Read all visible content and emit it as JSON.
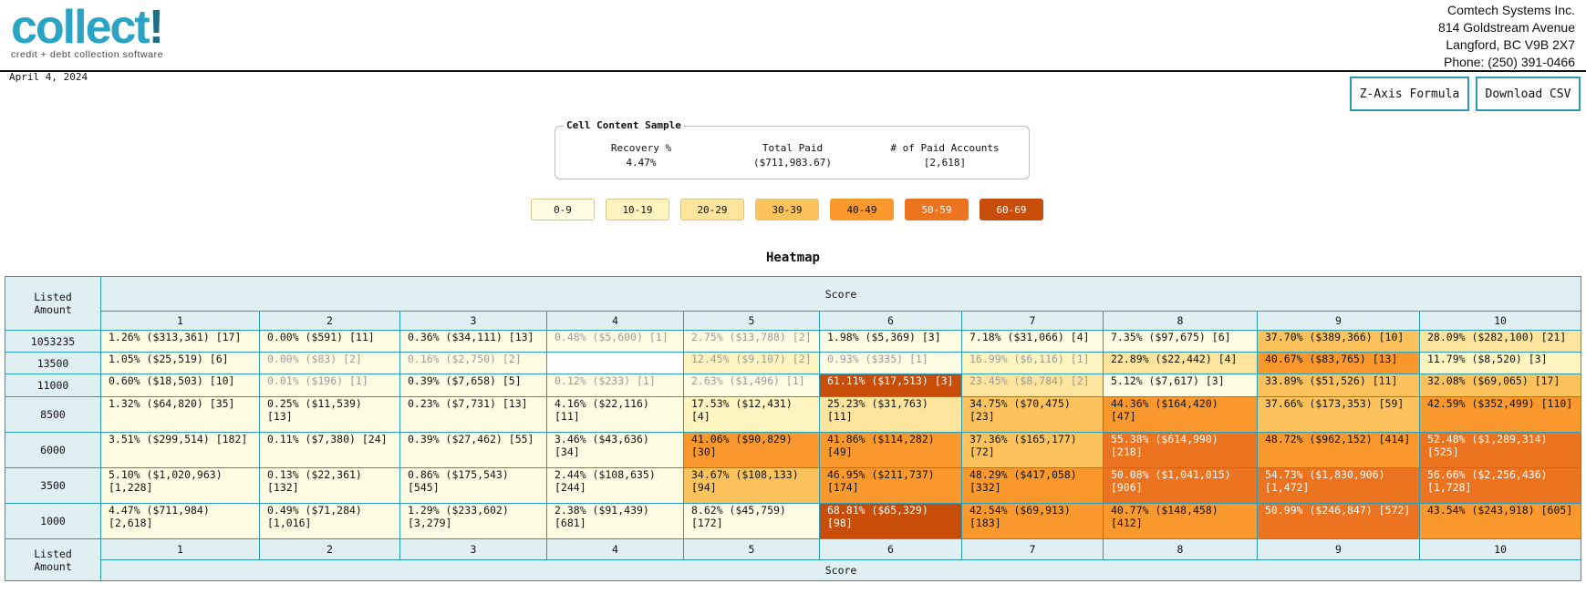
{
  "header": {
    "logo_word": "collect",
    "logo_bang": "!",
    "logo_tagline": "credit + debt collection software",
    "company": [
      "Comtech Systems Inc.",
      "814 Goldstream Avenue",
      "Langford, BC V9B 2X7",
      "Phone: (250) 391-0466"
    ]
  },
  "date": "April 4, 2024",
  "buttons": {
    "z_axis": "Z-Axis Formula",
    "download_csv": "Download CSV"
  },
  "sample": {
    "legend": "Cell Content Sample",
    "columns": [
      {
        "label": "Recovery %",
        "value": "4.47%"
      },
      {
        "label": "Total Paid",
        "value": "($711,983.67)"
      },
      {
        "label": "# of Paid Accounts",
        "value": "[2,618]"
      }
    ]
  },
  "legend": [
    {
      "label": "0-9",
      "color": "#fefde4",
      "text": "#111111"
    },
    {
      "label": "10-19",
      "color": "#fef4c0",
      "text": "#111111"
    },
    {
      "label": "20-29",
      "color": "#fde49c",
      "text": "#111111"
    },
    {
      "label": "30-39",
      "color": "#fcc35d",
      "text": "#111111"
    },
    {
      "label": "40-49",
      "color": "#f9982d",
      "text": "#111111"
    },
    {
      "label": "50-59",
      "color": "#ec7320",
      "text": "#ffffff"
    },
    {
      "label": "60-69",
      "color": "#c84d09",
      "text": "#ffffff"
    }
  ],
  "heatmap": {
    "title": "Heatmap",
    "corner_label": "Listed Amount",
    "x_axis_label": "Score",
    "scores": [
      "1",
      "2",
      "3",
      "4",
      "5",
      "6",
      "7",
      "8",
      "9",
      "10"
    ],
    "rows": [
      {
        "amount": "1053235",
        "cells": [
          {
            "t": "1.26% ($313,361) [17]",
            "v": 1.26,
            "f": false
          },
          {
            "t": "0.00% ($591) [11]",
            "v": 0.0,
            "f": false
          },
          {
            "t": "0.36% ($34,111) [13]",
            "v": 0.36,
            "f": false
          },
          {
            "t": "0.48% ($5,600) [1]",
            "v": 0.48,
            "f": true
          },
          {
            "t": "2.75% ($13,788) [2]",
            "v": 2.75,
            "f": true
          },
          {
            "t": "1.98% ($5,369) [3]",
            "v": 1.98,
            "f": false
          },
          {
            "t": "7.18% ($31,066) [4]",
            "v": 7.18,
            "f": false
          },
          {
            "t": "7.35% ($97,675) [6]",
            "v": 7.35,
            "f": false
          },
          {
            "t": "37.70% ($389,366) [10]",
            "v": 37.7,
            "f": false
          },
          {
            "t": "28.09% ($282,100) [21]",
            "v": 28.09,
            "f": false
          }
        ]
      },
      {
        "amount": "13500",
        "cells": [
          {
            "t": "1.05% ($25,519) [6]",
            "v": 1.05,
            "f": false
          },
          {
            "t": "0.00% ($83) [2]",
            "v": 0.0,
            "f": true
          },
          {
            "t": "0.16% ($2,750) [2]",
            "v": 0.16,
            "f": true
          },
          {
            "t": "",
            "v": null,
            "f": false
          },
          {
            "t": "12.45% ($9,107) [2]",
            "v": 12.45,
            "f": true
          },
          {
            "t": "0.93% ($335) [1]",
            "v": 0.93,
            "f": true
          },
          {
            "t": "16.99% ($6,116) [1]",
            "v": 16.99,
            "f": true
          },
          {
            "t": "22.89% ($22,442) [4]",
            "v": 22.89,
            "f": false
          },
          {
            "t": "40.67% ($83,765) [13]",
            "v": 40.67,
            "f": false
          },
          {
            "t": "11.79% ($8,520) [3]",
            "v": 11.79,
            "f": false
          }
        ]
      },
      {
        "amount": "11000",
        "cells": [
          {
            "t": "0.60% ($18,503) [10]",
            "v": 0.6,
            "f": false
          },
          {
            "t": "0.01% ($196) [1]",
            "v": 0.01,
            "f": true
          },
          {
            "t": "0.39% ($7,658) [5]",
            "v": 0.39,
            "f": false
          },
          {
            "t": "0.12% ($233) [1]",
            "v": 0.12,
            "f": true
          },
          {
            "t": "2.63% ($1,496) [1]",
            "v": 2.63,
            "f": true
          },
          {
            "t": "61.11% ($17,513) [3]",
            "v": 61.11,
            "f": false
          },
          {
            "t": "23.45% ($8,784) [2]",
            "v": 23.45,
            "f": true
          },
          {
            "t": "5.12% ($7,617) [3]",
            "v": 5.12,
            "f": false
          },
          {
            "t": "33.89% ($51,526) [11]",
            "v": 33.89,
            "f": false
          },
          {
            "t": "32.08% ($69,065) [17]",
            "v": 32.08,
            "f": false
          }
        ]
      },
      {
        "amount": "8500",
        "cells": [
          {
            "t": "1.32% ($64,820) [35]",
            "v": 1.32,
            "f": false
          },
          {
            "t": "0.25% ($11,539) [13]",
            "v": 0.25,
            "f": false
          },
          {
            "t": "0.23% ($7,731) [13]",
            "v": 0.23,
            "f": false
          },
          {
            "t": "4.16% ($22,116) [11]",
            "v": 4.16,
            "f": false
          },
          {
            "t": "17.53% ($12,431) [4]",
            "v": 17.53,
            "f": false
          },
          {
            "t": "25.23% ($31,763) [11]",
            "v": 25.23,
            "f": false
          },
          {
            "t": "34.75% ($70,475) [23]",
            "v": 34.75,
            "f": false
          },
          {
            "t": "44.36% ($164,420) [47]",
            "v": 44.36,
            "f": false
          },
          {
            "t": "37.66% ($173,353) [59]",
            "v": 37.66,
            "f": false
          },
          {
            "t": "42.59% ($352,499) [110]",
            "v": 42.59,
            "f": false
          }
        ]
      },
      {
        "amount": "6000",
        "cells": [
          {
            "t": "3.51% ($299,514) [182]",
            "v": 3.51,
            "f": false
          },
          {
            "t": "0.11% ($7,380) [24]",
            "v": 0.11,
            "f": false
          },
          {
            "t": "0.39% ($27,462) [55]",
            "v": 0.39,
            "f": false
          },
          {
            "t": "3.46% ($43,636) [34]",
            "v": 3.46,
            "f": false
          },
          {
            "t": "41.06% ($90,829) [30]",
            "v": 41.06,
            "f": false
          },
          {
            "t": "41.86% ($114,282) [49]",
            "v": 41.86,
            "f": false
          },
          {
            "t": "37.36% ($165,177) [72]",
            "v": 37.36,
            "f": false
          },
          {
            "t": "55.38% ($614,990) [218]",
            "v": 55.38,
            "f": false
          },
          {
            "t": "48.72% ($962,152) [414]",
            "v": 48.72,
            "f": false
          },
          {
            "t": "52.48% ($1,289,314) [525]",
            "v": 52.48,
            "f": false
          }
        ]
      },
      {
        "amount": "3500",
        "cells": [
          {
            "t": "5.10% ($1,020,963) [1,228]",
            "v": 5.1,
            "f": false
          },
          {
            "t": "0.13% ($22,361) [132]",
            "v": 0.13,
            "f": false
          },
          {
            "t": "0.86% ($175,543) [545]",
            "v": 0.86,
            "f": false
          },
          {
            "t": "2.44% ($108,635) [244]",
            "v": 2.44,
            "f": false
          },
          {
            "t": "34.67% ($108,133) [94]",
            "v": 34.67,
            "f": false
          },
          {
            "t": "46.95% ($211,737) [174]",
            "v": 46.95,
            "f": false
          },
          {
            "t": "48.29% ($417,058) [332]",
            "v": 48.29,
            "f": false
          },
          {
            "t": "50.08% ($1,041,015) [906]",
            "v": 50.08,
            "f": false
          },
          {
            "t": "54.73% ($1,830,906) [1,472]",
            "v": 54.73,
            "f": false
          },
          {
            "t": "56.66% ($2,256,436) [1,728]",
            "v": 56.66,
            "f": false
          }
        ]
      },
      {
        "amount": "1000",
        "cells": [
          {
            "t": "4.47% ($711,984) [2,618]",
            "v": 4.47,
            "f": false
          },
          {
            "t": "0.49% ($71,284) [1,016]",
            "v": 0.49,
            "f": false
          },
          {
            "t": "1.29% ($233,602) [3,279]",
            "v": 1.29,
            "f": false
          },
          {
            "t": "2.38% ($91,439) [681]",
            "v": 2.38,
            "f": false
          },
          {
            "t": "8.62% ($45,759) [172]",
            "v": 8.62,
            "f": false
          },
          {
            "t": "68.81% ($65,329) [98]",
            "v": 68.81,
            "f": false
          },
          {
            "t": "42.54% ($69,913) [183]",
            "v": 42.54,
            "f": false
          },
          {
            "t": "40.77% ($148,458) [412]",
            "v": 40.77,
            "f": false
          },
          {
            "t": "50.99% ($246,847) [572]",
            "v": 50.99,
            "f": false
          },
          {
            "t": "43.54% ($243,918) [605]",
            "v": 43.54,
            "f": false
          }
        ]
      }
    ]
  }
}
